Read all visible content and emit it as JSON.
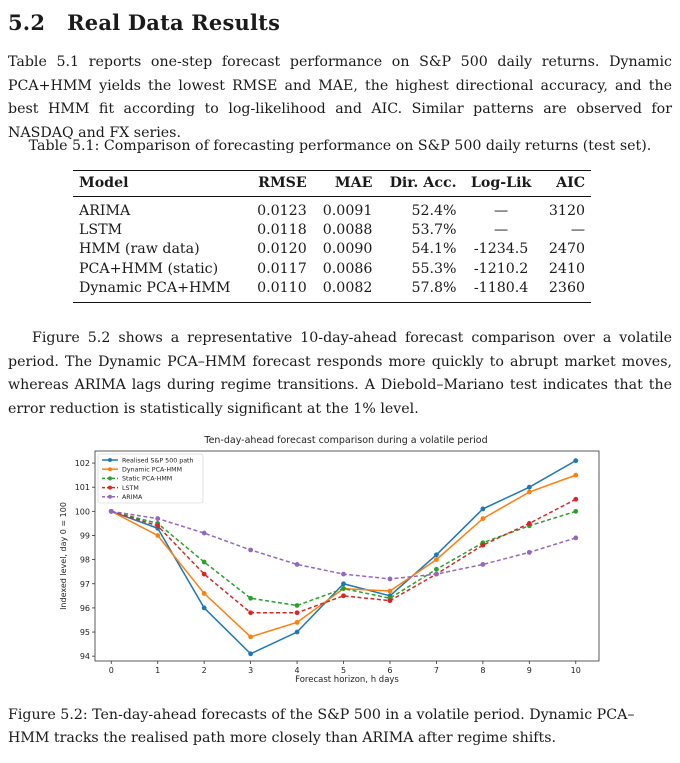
{
  "section": {
    "number": "5.2",
    "title": "Real Data Results"
  },
  "paragraph1": "Table 5.1 reports one-step forecast performance on S&P 500 daily returns. Dynamic PCA+HMM yields the lowest RMSE and MAE, the highest directional accuracy, and the best HMM fit according to log-likelihood and AIC. Similar patterns are observed for NASDAQ and FX series.",
  "table": {
    "caption": "Table 5.1: Comparison of forecasting performance on S&P 500 daily returns (test set).",
    "headers": [
      "Model",
      "RMSE",
      "MAE",
      "Dir. Acc.",
      "Log-Lik",
      "AIC"
    ],
    "rows": [
      [
        "ARIMA",
        "0.0123",
        "0.0091",
        "52.4%",
        "—",
        "3120"
      ],
      [
        "LSTM",
        "0.0118",
        "0.0088",
        "53.7%",
        "—",
        "—"
      ],
      [
        "HMM (raw data)",
        "0.0120",
        "0.0090",
        "54.1%",
        "-1234.5",
        "2470"
      ],
      [
        "PCA+HMM (static)",
        "0.0117",
        "0.0086",
        "55.3%",
        "-1210.2",
        "2410"
      ],
      [
        "Dynamic PCA+HMM",
        "0.0110",
        "0.0082",
        "57.8%",
        "-1180.4",
        "2360"
      ]
    ]
  },
  "paragraph2": "Figure 5.2 shows a representative 10-day-ahead forecast comparison over a volatile period. The Dynamic PCA–HMM forecast responds more quickly to abrupt market moves, whereas ARIMA lags during regime transitions. A Diebold–Mariano test indicates that the error reduction is statistically significant at the 1% level.",
  "figure_caption": "Figure 5.2: Ten-day-ahead forecasts of the S&P 500 in a volatile period. Dynamic PCA–HMM tracks the realised path more closely than ARIMA after regime shifts.",
  "chart_data": {
    "type": "line",
    "title": "Ten-day-ahead forecast comparison during a volatile period",
    "xlabel": "Forecast horizon, h days",
    "ylabel": "Indexed level, day 0 = 100",
    "x": [
      0,
      1,
      2,
      3,
      4,
      5,
      6,
      7,
      8,
      9,
      10
    ],
    "xlim": [
      -0.35,
      10.5
    ],
    "ylim": [
      93.8,
      102.5
    ],
    "yticks": [
      94,
      95,
      96,
      97,
      98,
      99,
      100,
      101,
      102
    ],
    "grid": false,
    "legend": "top-left",
    "series": [
      {
        "name": "Realised S&P 500 path",
        "color": "#1f77b4",
        "dash": "solid",
        "values": [
          100,
          99.3,
          96.0,
          94.1,
          95.0,
          97.0,
          96.5,
          98.2,
          100.1,
          101.0,
          102.1
        ]
      },
      {
        "name": "Dynamic PCA-HMM",
        "color": "#ff7f0e",
        "dash": "solid",
        "values": [
          100,
          99.0,
          96.6,
          94.8,
          95.4,
          96.8,
          96.7,
          98.0,
          99.7,
          100.8,
          101.5
        ]
      },
      {
        "name": "Static PCA-HMM",
        "color": "#2ca02c",
        "dash": "dashed",
        "values": [
          100,
          99.5,
          97.9,
          96.4,
          96.1,
          96.8,
          96.4,
          97.6,
          98.7,
          99.4,
          100.0
        ]
      },
      {
        "name": "LSTM",
        "color": "#d62728",
        "dash": "dashed",
        "values": [
          100,
          99.4,
          97.4,
          95.8,
          95.8,
          96.5,
          96.3,
          97.4,
          98.6,
          99.5,
          100.5
        ]
      },
      {
        "name": "ARIMA",
        "color": "#9467bd",
        "dash": "dashed",
        "values": [
          100,
          99.7,
          99.1,
          98.4,
          97.8,
          97.4,
          97.2,
          97.4,
          97.8,
          98.3,
          98.9
        ]
      }
    ]
  }
}
